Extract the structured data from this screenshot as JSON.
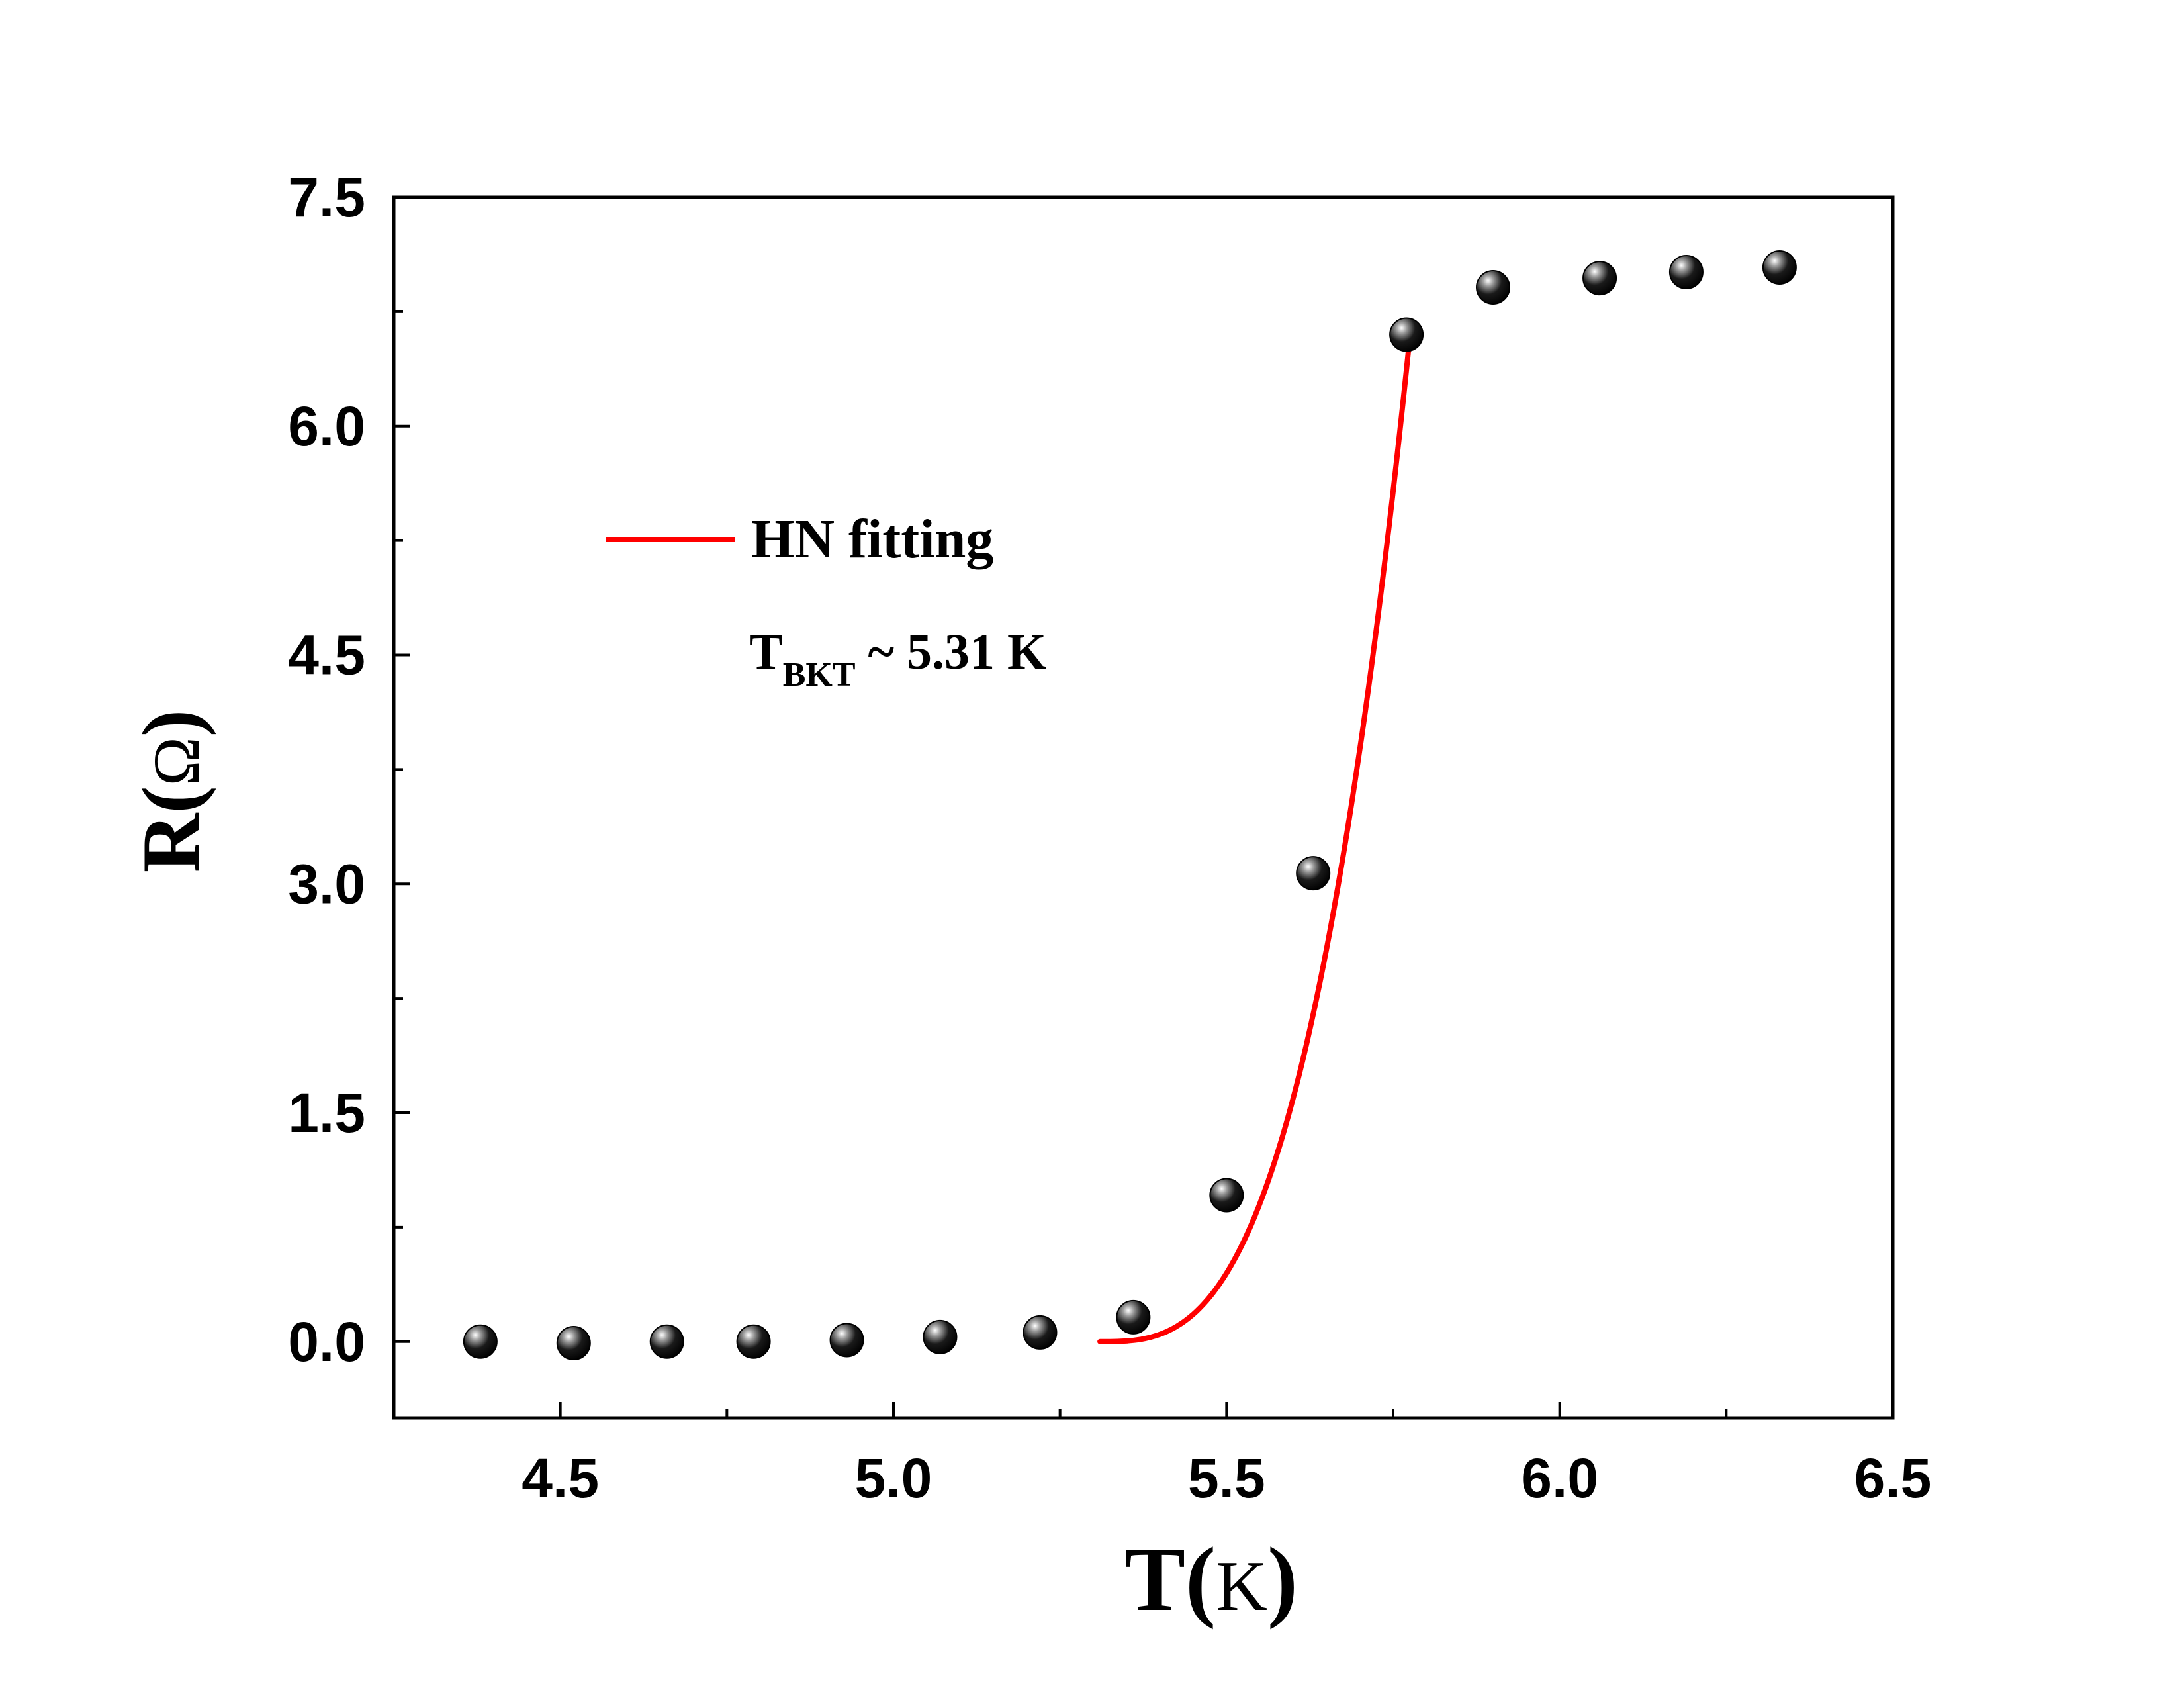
{
  "chart_data": {
    "type": "scatter",
    "xlabel": {
      "main": "T(",
      "unit": "K",
      "close": ")"
    },
    "ylabel": {
      "main": "R(",
      "unit": "Ω",
      "close": ")"
    },
    "xlim": [
      4.25,
      6.5
    ],
    "ylim": [
      -0.5,
      7.5
    ],
    "x_ticks": [
      "4.5",
      "5.0",
      "5.5",
      "6.0",
      "6.5"
    ],
    "y_ticks": [
      "0.0",
      "1.5",
      "3.0",
      "4.5",
      "6.0",
      "7.5"
    ],
    "x_major_step": 0.5,
    "x_minor_step": 0.25,
    "y_major_step": 1.5,
    "y_minor_step": 0.75,
    "series": [
      {
        "kind": "points",
        "color": "#000000",
        "x": [
          4.38,
          4.52,
          4.66,
          4.79,
          4.93,
          5.07,
          5.22,
          5.36,
          5.5,
          5.63,
          5.77,
          5.9,
          6.06,
          6.19,
          6.33
        ],
        "y": [
          0.0,
          -0.01,
          0.0,
          0.0,
          0.01,
          0.03,
          0.06,
          0.16,
          0.96,
          3.07,
          6.6,
          6.91,
          6.97,
          7.01,
          7.04
        ]
      },
      {
        "kind": "fit",
        "name": "HN fitting",
        "color": "#ff0000",
        "T_c": 5.31,
        "T_end": 5.775,
        "R_end": 6.58
      }
    ],
    "legend": {
      "label": "HN fitting",
      "placement": "upper-left"
    },
    "annotation": {
      "main": "T",
      "sub": "BKT",
      "rest": " ~ 5.31 K"
    }
  }
}
